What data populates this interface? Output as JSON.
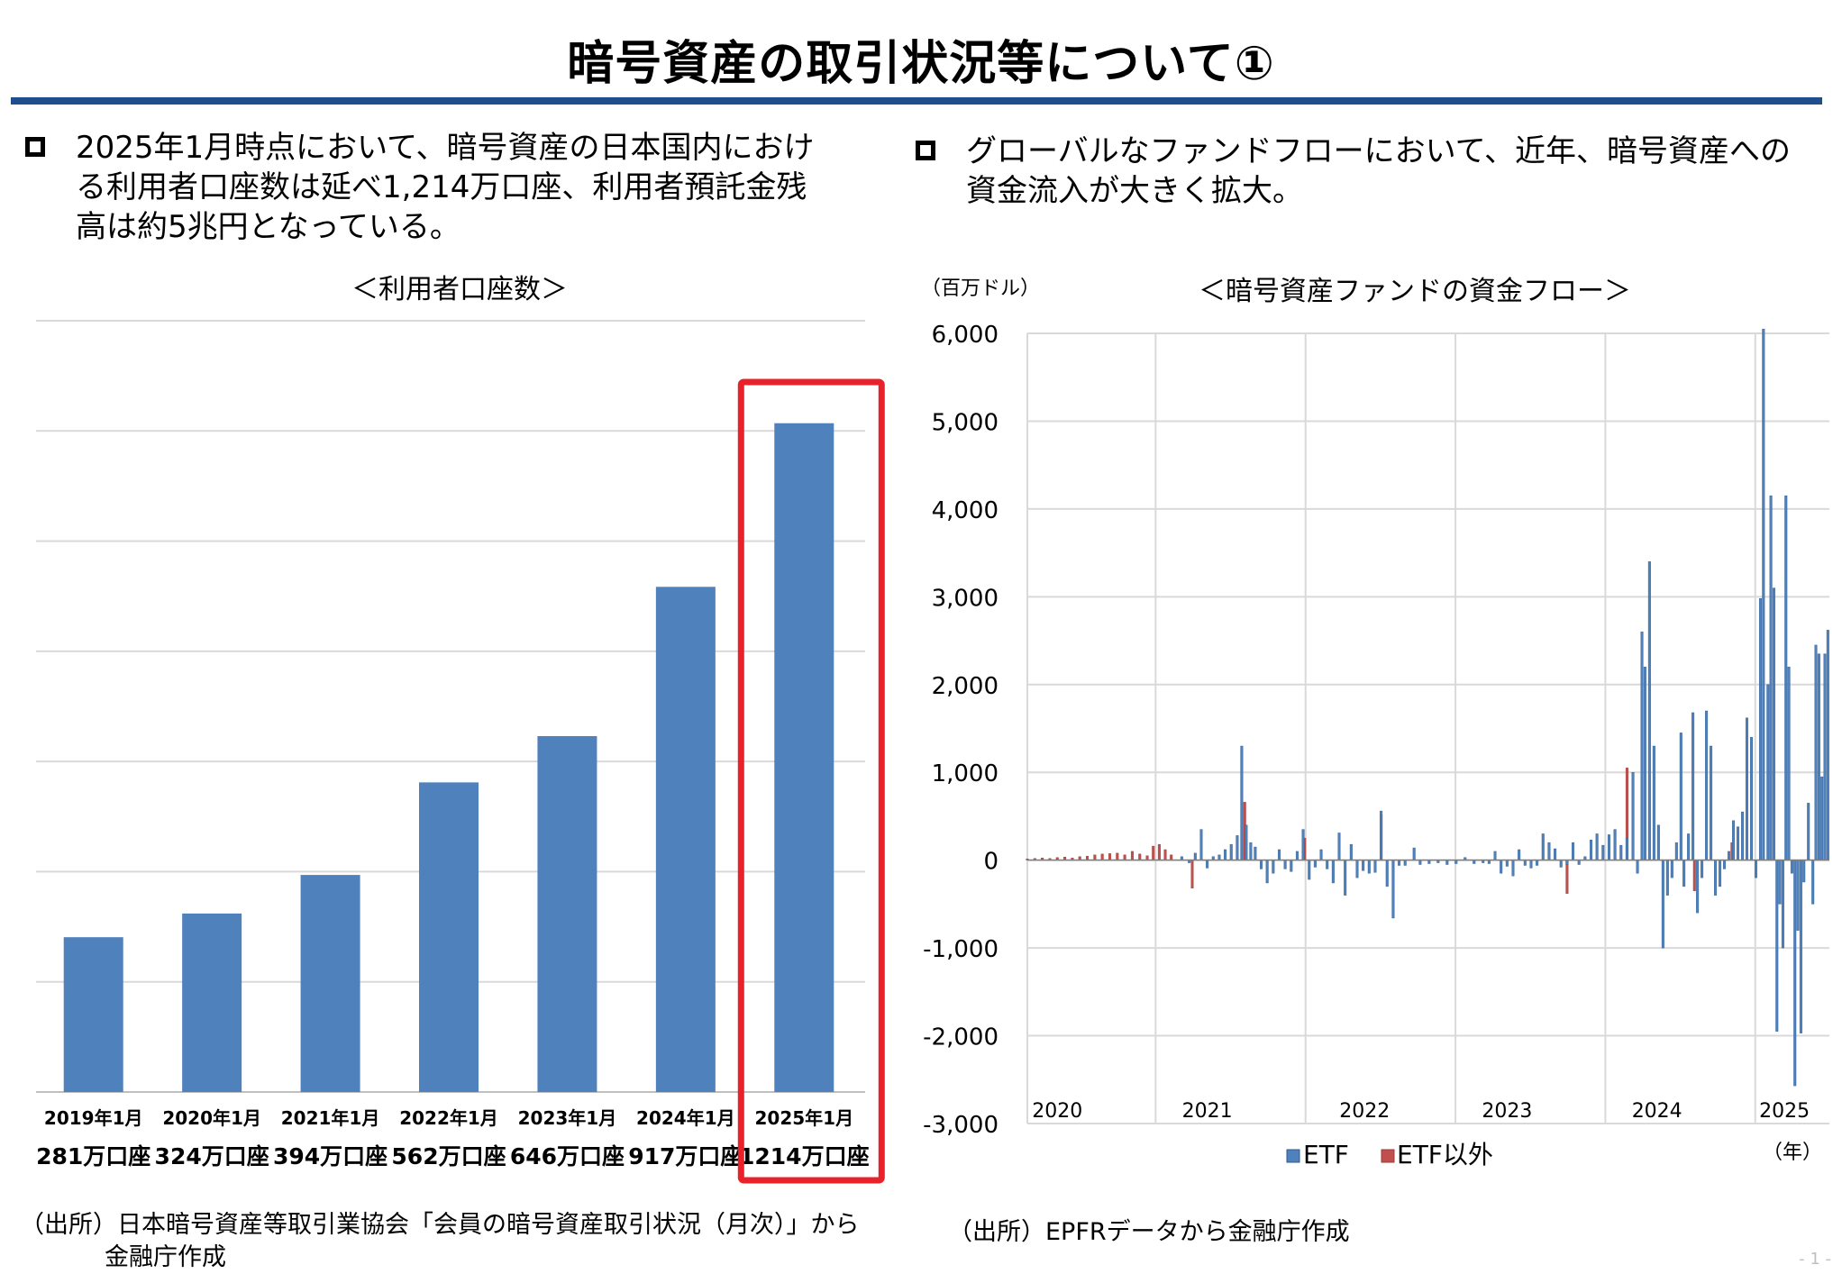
{
  "page": {
    "title": "暗号資産の取引状況等について①",
    "page_number": "- 1 -"
  },
  "left": {
    "bullet_lines": [
      "2025年1月時点において、暗号資産の日本国内におけ",
      "る利用者口座数は延べ1,214万口座、利用者預託金残",
      "高は約5兆円となっている。"
    ],
    "chart_title": "＜利用者口座数＞",
    "source_lines": [
      "（出所）日本暗号資産等取引業協会「会員の暗号資産取引状況（月次）」から",
      "金融庁作成"
    ]
  },
  "right": {
    "bullet_lines": [
      "グローバルなファンドフローにおいて、近年、暗号資産への",
      "資金流入が大きく拡大。"
    ],
    "chart_title": "＜暗号資産ファンドの資金フロー＞",
    "unit_label": "（百万ドル）",
    "year_unit": "（年）",
    "source": "（出所）EPFRデータから金融庁作成"
  },
  "colors": {
    "bar": "#4f81bd",
    "non_etf": "#c0504d",
    "highlight": "#e8212a",
    "rule": "#1f4e8c"
  },
  "chart_data": [
    {
      "type": "bar",
      "title": "＜利用者口座数＞",
      "categories": [
        "2019年1月",
        "2020年1月",
        "2021年1月",
        "2022年1月",
        "2023年1月",
        "2024年1月",
        "2025年1月"
      ],
      "values": [
        281,
        324,
        394,
        562,
        646,
        917,
        1214
      ],
      "value_labels": [
        "281万口座",
        "324万口座",
        "394万口座",
        "562万口座",
        "646万口座",
        "917万口座",
        "1214万口座"
      ],
      "unit": "万口座",
      "ylim": [
        0,
        1400
      ],
      "highlight_category": "2025年1月",
      "grid": true
    },
    {
      "type": "bar",
      "title": "＜暗号資産ファンドの資金フロー＞",
      "ylabel": "（百万ドル）",
      "xlabel": "（年）",
      "ylim": [
        -3000,
        6000
      ],
      "yticks": [
        -3000,
        -2000,
        -1000,
        0,
        1000,
        2000,
        3000,
        4000,
        5000,
        6000
      ],
      "ytick_labels": [
        "-3,000",
        "-2,000",
        "-1,000",
        "0",
        "1,000",
        "2,000",
        "3,000",
        "4,000",
        "5,000",
        "6,000"
      ],
      "x_years": [
        "2020",
        "2021",
        "2022",
        "2023",
        "2024",
        "2025"
      ],
      "x_range": [
        2020.0,
        2025.35
      ],
      "legend": [
        "ETF",
        "ETF以外"
      ],
      "legend_position": "bottom",
      "series": [
        {
          "name": "ETF",
          "points": [
            [
              2021.03,
              40
            ],
            [
              2021.08,
              -30
            ],
            [
              2021.12,
              80
            ],
            [
              2021.16,
              350
            ],
            [
              2021.2,
              -90
            ],
            [
              2021.24,
              40
            ],
            [
              2021.28,
              60
            ],
            [
              2021.32,
              120
            ],
            [
              2021.36,
              180
            ],
            [
              2021.4,
              280
            ],
            [
              2021.43,
              1300
            ],
            [
              2021.46,
              400
            ],
            [
              2021.49,
              200
            ],
            [
              2021.52,
              150
            ],
            [
              2021.56,
              -100
            ],
            [
              2021.6,
              -260
            ],
            [
              2021.64,
              -150
            ],
            [
              2021.68,
              120
            ],
            [
              2021.72,
              -100
            ],
            [
              2021.76,
              -130
            ],
            [
              2021.8,
              100
            ],
            [
              2021.84,
              350
            ],
            [
              2021.88,
              -220
            ],
            [
              2021.92,
              -80
            ],
            [
              2021.96,
              120
            ],
            [
              2022.0,
              -100
            ],
            [
              2022.04,
              -260
            ],
            [
              2022.08,
              310
            ],
            [
              2022.12,
              -400
            ],
            [
              2022.16,
              180
            ],
            [
              2022.2,
              -200
            ],
            [
              2022.24,
              -120
            ],
            [
              2022.28,
              -150
            ],
            [
              2022.32,
              -140
            ],
            [
              2022.36,
              560
            ],
            [
              2022.4,
              -300
            ],
            [
              2022.44,
              -660
            ],
            [
              2022.48,
              -60
            ],
            [
              2022.52,
              -60
            ],
            [
              2022.58,
              140
            ],
            [
              2022.62,
              -50
            ],
            [
              2022.68,
              -40
            ],
            [
              2022.74,
              -30
            ],
            [
              2022.8,
              -50
            ],
            [
              2022.86,
              -40
            ],
            [
              2022.92,
              30
            ],
            [
              2022.98,
              -40
            ],
            [
              2023.04,
              -30
            ],
            [
              2023.08,
              -40
            ],
            [
              2023.12,
              100
            ],
            [
              2023.16,
              -150
            ],
            [
              2023.2,
              -70
            ],
            [
              2023.24,
              -180
            ],
            [
              2023.28,
              120
            ],
            [
              2023.32,
              -60
            ],
            [
              2023.36,
              -90
            ],
            [
              2023.4,
              -60
            ],
            [
              2023.44,
              300
            ],
            [
              2023.48,
              200
            ],
            [
              2023.52,
              130
            ],
            [
              2023.56,
              -80
            ],
            [
              2023.6,
              -50
            ],
            [
              2023.64,
              200
            ],
            [
              2023.68,
              -50
            ],
            [
              2023.72,
              40
            ],
            [
              2023.76,
              230
            ],
            [
              2023.8,
              300
            ],
            [
              2023.84,
              170
            ],
            [
              2023.88,
              290
            ],
            [
              2023.92,
              350
            ],
            [
              2023.96,
              170
            ],
            [
              2024.0,
              250
            ],
            [
              2024.04,
              1000
            ],
            [
              2024.07,
              -150
            ],
            [
              2024.1,
              2600
            ],
            [
              2024.12,
              2200
            ],
            [
              2024.15,
              3400
            ],
            [
              2024.18,
              1300
            ],
            [
              2024.21,
              400
            ],
            [
              2024.24,
              -1000
            ],
            [
              2024.27,
              -400
            ],
            [
              2024.3,
              -200
            ],
            [
              2024.33,
              200
            ],
            [
              2024.36,
              1450
            ],
            [
              2024.38,
              -300
            ],
            [
              2024.41,
              300
            ],
            [
              2024.44,
              1680
            ],
            [
              2024.47,
              -600
            ],
            [
              2024.5,
              -200
            ],
            [
              2024.53,
              1700
            ],
            [
              2024.56,
              1300
            ],
            [
              2024.59,
              -400
            ],
            [
              2024.62,
              -300
            ],
            [
              2024.65,
              -100
            ],
            [
              2024.68,
              100
            ],
            [
              2024.71,
              450
            ],
            [
              2024.74,
              380
            ],
            [
              2024.77,
              550
            ],
            [
              2024.8,
              1620
            ],
            [
              2024.83,
              1400
            ],
            [
              2024.86,
              -200
            ],
            [
              2024.89,
              2980
            ],
            [
              2024.91,
              6050
            ],
            [
              2024.94,
              2000
            ],
            [
              2024.96,
              4150
            ],
            [
              2024.98,
              3100
            ],
            [
              2025.0,
              -1950
            ],
            [
              2025.02,
              -500
            ],
            [
              2025.04,
              -1000
            ],
            [
              2025.06,
              4150
            ],
            [
              2025.08,
              2200
            ],
            [
              2025.1,
              -150
            ],
            [
              2025.12,
              -2570
            ],
            [
              2025.14,
              -800
            ],
            [
              2025.16,
              -1970
            ],
            [
              2025.18,
              -250
            ],
            [
              2025.21,
              650
            ],
            [
              2025.24,
              -500
            ],
            [
              2025.26,
              2450
            ],
            [
              2025.28,
              2350
            ],
            [
              2025.3,
              950
            ],
            [
              2025.32,
              2350
            ],
            [
              2025.34,
              2620
            ]
          ]
        },
        {
          "name": "ETF以外",
          "points": [
            [
              2020.0,
              15
            ],
            [
              2020.05,
              20
            ],
            [
              2020.1,
              25
            ],
            [
              2020.15,
              20
            ],
            [
              2020.2,
              30
            ],
            [
              2020.25,
              35
            ],
            [
              2020.3,
              25
            ],
            [
              2020.35,
              40
            ],
            [
              2020.4,
              45
            ],
            [
              2020.45,
              60
            ],
            [
              2020.5,
              70
            ],
            [
              2020.55,
              75
            ],
            [
              2020.6,
              80
            ],
            [
              2020.65,
              60
            ],
            [
              2020.7,
              100
            ],
            [
              2020.75,
              70
            ],
            [
              2020.8,
              50
            ],
            [
              2020.84,
              160
            ],
            [
              2020.88,
              180
            ],
            [
              2020.92,
              120
            ],
            [
              2020.96,
              60
            ],
            [
              2021.1,
              -320
            ],
            [
              2021.45,
              660
            ],
            [
              2021.85,
              250
            ],
            [
              2022.36,
              520
            ],
            [
              2023.6,
              -380
            ],
            [
              2024.0,
              1050
            ],
            [
              2024.45,
              -350
            ],
            [
              2024.7,
              200
            ]
          ]
        }
      ],
      "grid": true
    }
  ]
}
